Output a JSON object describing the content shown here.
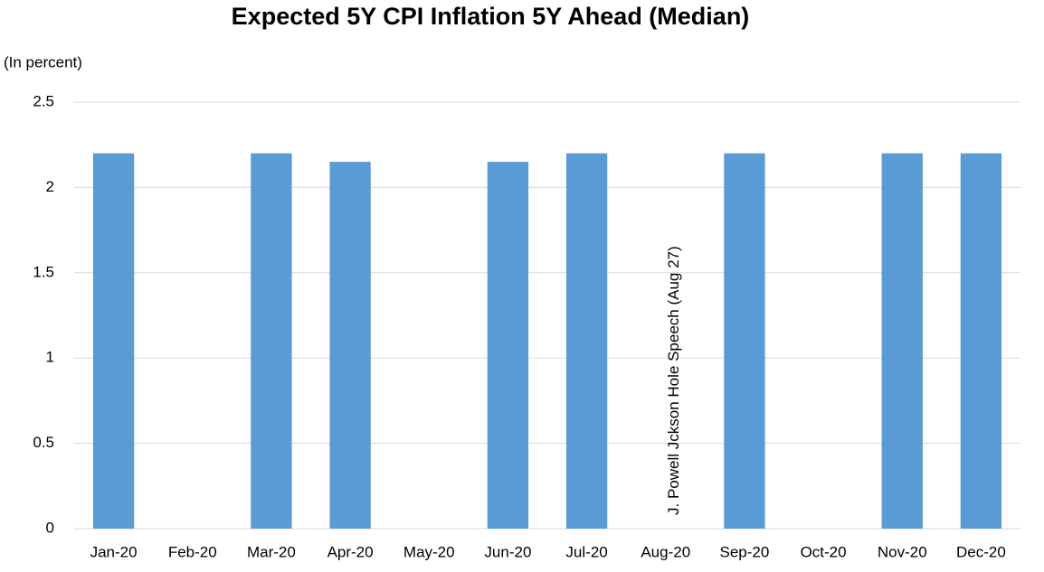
{
  "chart_data": {
    "type": "bar",
    "title": "Expected 5Y CPI Inflation 5Y Ahead (Median)",
    "subtitle": "(In percent)",
    "categories": [
      "Jan-20",
      "Feb-20",
      "Mar-20",
      "Apr-20",
      "May-20",
      "Jun-20",
      "Jul-20",
      "Aug-20",
      "Sep-20",
      "Oct-20",
      "Nov-20",
      "Dec-20"
    ],
    "values": [
      2.2,
      null,
      2.2,
      2.15,
      null,
      2.15,
      2.2,
      null,
      2.2,
      null,
      2.2,
      2.2
    ],
    "color": "#5b9bd5",
    "ylim": [
      0,
      2.5
    ],
    "yticks": [
      0,
      0.5,
      1,
      1.5,
      2,
      2.5
    ],
    "grid": true,
    "annotation": {
      "text": "J. Powell Jckson Hole Speech (Aug 27)",
      "category": "Aug-20"
    }
  }
}
